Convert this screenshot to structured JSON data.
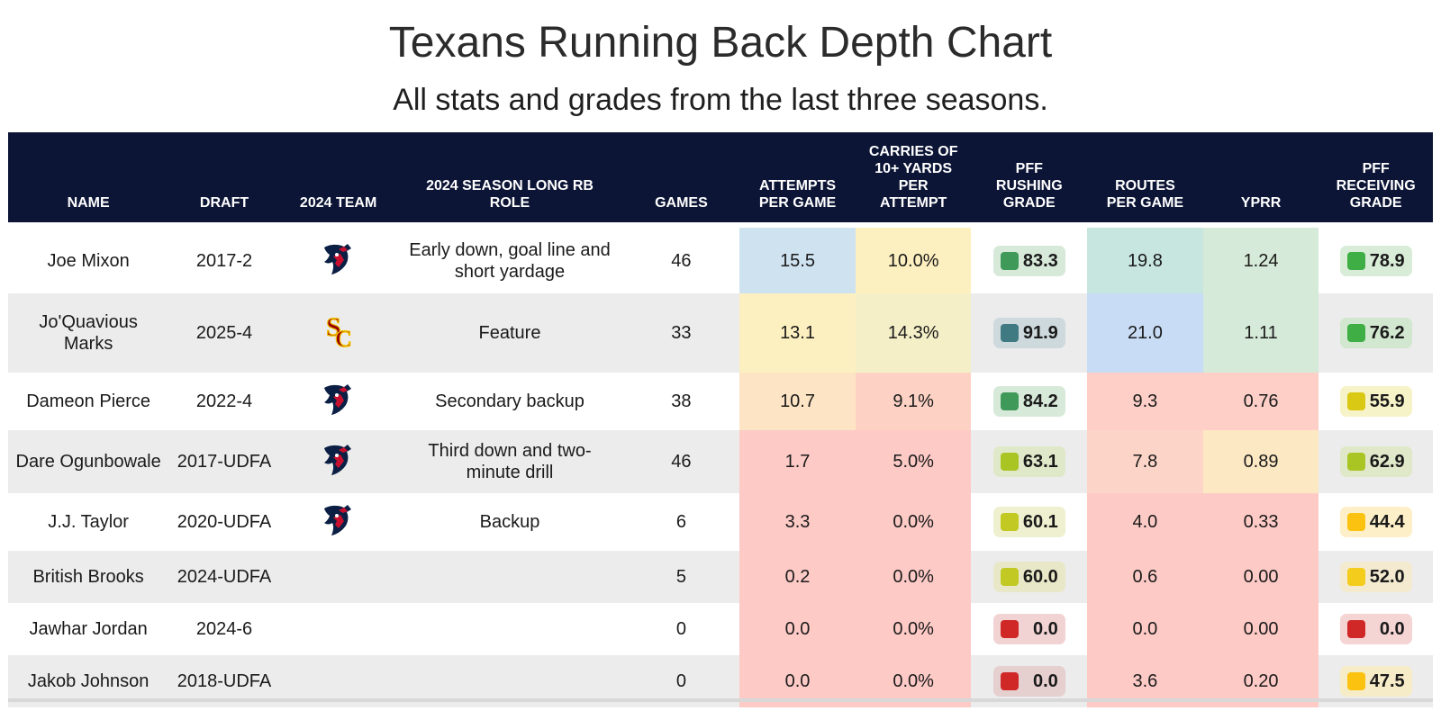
{
  "title": "Texans Running Back Depth Chart",
  "subtitle": "All stats and grades from the last three seasons.",
  "headers": {
    "name": "NAME",
    "draft": "DRAFT",
    "team": "2024 TEAM",
    "role": "2024 SEASON LONG RB ROLE",
    "games": "GAMES",
    "apg": "ATTEMPTS PER GAME",
    "carries": "CARRIES OF 10+ YARDS PER ATTEMPT",
    "rush": "PFF RUSHING GRADE",
    "routes": "ROUTES PER GAME",
    "yprr": "YPRR",
    "recv": "PFF RECEIVING GRADE"
  },
  "rows": [
    {
      "name": "Joe Mixon",
      "draft": "2017-2",
      "team_icon": "texans-logo-icon",
      "role": "Early down, goal line and short yardage",
      "games": "46",
      "apg": "15.5",
      "carries": "10.0%",
      "rush": "83.3",
      "routes": "19.8",
      "yprr": "1.24",
      "recv": "78.9",
      "colors": {
        "apg": "#cfe2f0",
        "carries": "#fdf0c0",
        "rush_dot": "#3f9a5a",
        "rush_bg": "#d7e9d9",
        "routes": "#c8e6e0",
        "yprr": "#d5ead8",
        "recv_dot": "#3fae45",
        "recv_bg": "#d9ecd7"
      }
    },
    {
      "name": "Jo'Quavious Marks",
      "draft": "2025-4",
      "team_icon": "usc-logo-icon",
      "role": "Feature",
      "games": "33",
      "apg": "13.1",
      "carries": "14.3%",
      "rush": "91.9",
      "routes": "21.0",
      "yprr": "1.11",
      "recv": "76.2",
      "colors": {
        "apg": "#fdf0c0",
        "carries": "#f5efc8",
        "rush_dot": "#3f7a82",
        "rush_bg": "#cdd9dc",
        "routes": "#c8dcf5",
        "yprr": "#d5ead8",
        "recv_dot": "#3fae45",
        "recv_bg": "#d2e7d0"
      }
    },
    {
      "name": "Dameon Pierce",
      "draft": "2022-4",
      "team_icon": "texans-logo-icon",
      "role": "Secondary backup",
      "games": "38",
      "apg": "10.7",
      "carries": "9.1%",
      "rush": "84.2",
      "routes": "9.3",
      "yprr": "0.76",
      "recv": "55.9",
      "colors": {
        "apg": "#fde4c4",
        "carries": "#fdd2c4",
        "rush_dot": "#3f9a5a",
        "rush_bg": "#d7e9d9",
        "routes": "#fdcfc6",
        "yprr": "#fdcfc6",
        "recv_dot": "#d9c814",
        "recv_bg": "#f7f3c8"
      }
    },
    {
      "name": "Dare Ogunbowale",
      "draft": "2017-UDFA",
      "team_icon": "texans-logo-icon",
      "role": "Third down and two-minute drill",
      "games": "46",
      "apg": "1.7",
      "carries": "5.0%",
      "rush": "63.1",
      "routes": "7.8",
      "yprr": "0.89",
      "recv": "62.9",
      "colors": {
        "apg": "#fdcac6",
        "carries": "#fdcac6",
        "rush_dot": "#a9c523",
        "rush_bg": "#dfe8c8",
        "routes": "#fdd5c8",
        "yprr": "#fde8c4",
        "recv_dot": "#a9c523",
        "recv_bg": "#dfe8c8"
      }
    },
    {
      "name": "J.J. Taylor",
      "draft": "2020-UDFA",
      "team_icon": "texans-logo-icon",
      "role": "Backup",
      "games": "6",
      "apg": "3.3",
      "carries": "0.0%",
      "rush": "60.1",
      "routes": "4.0",
      "yprr": "0.33",
      "recv": "44.4",
      "colors": {
        "apg": "#fdcac6",
        "carries": "#fdcac6",
        "rush_dot": "#c2c923",
        "rush_bg": "#eef0cf",
        "routes": "#fdcac6",
        "yprr": "#fdcac6",
        "recv_dot": "#fbc30f",
        "recv_bg": "#fdf0c8"
      }
    },
    {
      "name": "British Brooks",
      "draft": "2024-UDFA",
      "team_icon": "",
      "role": "",
      "games": "5",
      "apg": "0.2",
      "carries": "0.0%",
      "rush": "60.0",
      "routes": "0.6",
      "yprr": "0.00",
      "recv": "52.0",
      "colors": {
        "apg": "#fdcac6",
        "carries": "#fdcac6",
        "rush_dot": "#c2c923",
        "rush_bg": "#e8e8c8",
        "routes": "#fdcac6",
        "yprr": "#fdcac6",
        "recv_dot": "#f4cc1b",
        "recv_bg": "#f3ead0"
      }
    },
    {
      "name": "Jawhar Jordan",
      "draft": "2024-6",
      "team_icon": "",
      "role": "",
      "games": "0",
      "apg": "0.0",
      "carries": "0.0%",
      "rush": "0.0",
      "routes": "0.0",
      "yprr": "0.00",
      "recv": "0.0",
      "colors": {
        "apg": "#fdcac6",
        "carries": "#fdcac6",
        "rush_dot": "#d02727",
        "rush_bg": "#f1d3d3",
        "routes": "#fdcac6",
        "yprr": "#fdcac6",
        "recv_dot": "#d02727",
        "recv_bg": "#f5d4d4"
      }
    },
    {
      "name": "Jakob Johnson",
      "draft": "2018-UDFA",
      "team_icon": "",
      "role": "",
      "games": "0",
      "apg": "0.0",
      "carries": "0.0%",
      "rush": "0.0",
      "routes": "3.6",
      "yprr": "0.20",
      "recv": "47.5",
      "colors": {
        "apg": "#fdcac6",
        "carries": "#fdcac6",
        "rush_dot": "#d02727",
        "rush_bg": "#e6cfcf",
        "routes": "#fdcac6",
        "yprr": "#fdcac6",
        "recv_dot": "#fbc30f",
        "recv_bg": "#f6ecc8"
      }
    }
  ]
}
